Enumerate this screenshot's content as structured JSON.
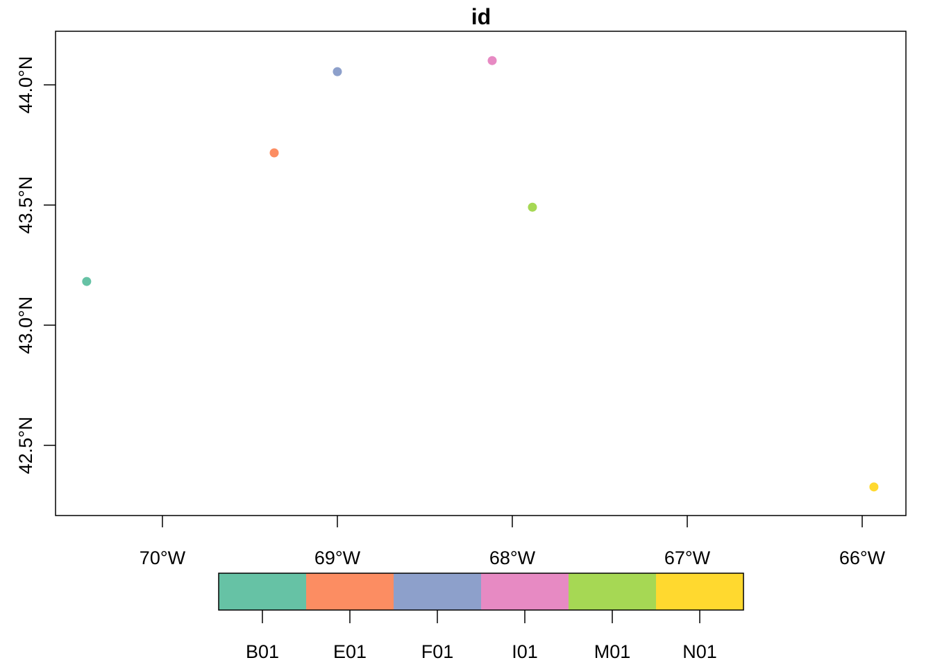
{
  "chart_data": {
    "type": "scatter",
    "title": "id",
    "xlabel": "",
    "ylabel": "",
    "xlim": [
      -70.611,
      -65.75
    ],
    "ylim": [
      42.208,
      44.223
    ],
    "grid": false,
    "x_ticks": [
      {
        "value": -70,
        "label": "70°W"
      },
      {
        "value": -69,
        "label": "69°W"
      },
      {
        "value": -68,
        "label": "68°W"
      },
      {
        "value": -67,
        "label": "67°W"
      },
      {
        "value": -66,
        "label": "66°W"
      }
    ],
    "y_ticks": [
      {
        "value": 44.0,
        "label": "44.0°N"
      },
      {
        "value": 43.5,
        "label": "43.5°N"
      },
      {
        "value": 43.0,
        "label": "43.0°N"
      },
      {
        "value": 42.5,
        "label": "42.5°N"
      }
    ],
    "points": [
      {
        "id": "B01",
        "lon": -70.433,
        "lat": 43.182,
        "color": "#66C2A5"
      },
      {
        "id": "E01",
        "lon": -69.361,
        "lat": 43.717,
        "color": "#FC8D62"
      },
      {
        "id": "F01",
        "lon": -69.0,
        "lat": 44.055,
        "color": "#8DA0CB"
      },
      {
        "id": "I01",
        "lon": -68.115,
        "lat": 44.101,
        "color": "#E78AC3"
      },
      {
        "id": "M01",
        "lon": -67.885,
        "lat": 43.491,
        "color": "#A6D854"
      },
      {
        "id": "N01",
        "lon": -65.933,
        "lat": 42.327,
        "color": "#FFD92F"
      }
    ],
    "legend": {
      "placement": "bottom",
      "entries": [
        {
          "label": "B01",
          "color": "#66C2A5"
        },
        {
          "label": "E01",
          "color": "#FC8D62"
        },
        {
          "label": "F01",
          "color": "#8DA0CB"
        },
        {
          "label": "I01",
          "color": "#E78AC3"
        },
        {
          "label": "M01",
          "color": "#A6D854"
        },
        {
          "label": "N01",
          "color": "#FFD92F"
        }
      ]
    }
  }
}
